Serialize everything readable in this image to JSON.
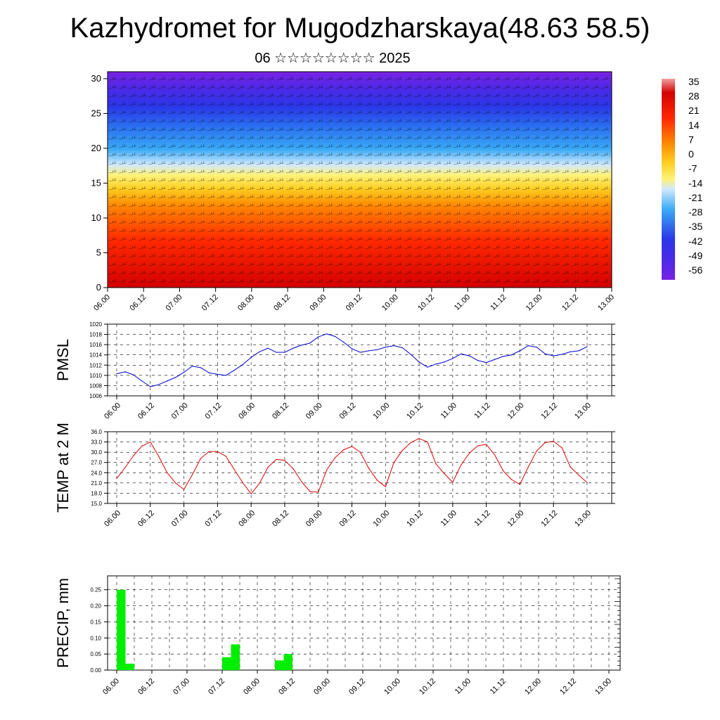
{
  "header": {
    "title": "Kazhydromet for Mugodzharskaya(48.63 58.5)",
    "subtitle": "06 ☆☆☆☆☆☆☆☆ 2025"
  },
  "time_labels": [
    "06.00",
    "06.12",
    "07.00",
    "07.12",
    "08.00",
    "08.12",
    "09.00",
    "09.12",
    "10.00",
    "10.12",
    "11.00",
    "11.12",
    "12.00",
    "12.12",
    "13.00"
  ],
  "colors": {
    "pmsl_line": "#0000cc",
    "temp_line": "#e00000",
    "precip_bar": "#00ee00",
    "grid": "#000000"
  },
  "chart_data": [
    {
      "type": "heatmap",
      "name": "vertical-cross-section",
      "x": [
        "06.00",
        "06.12",
        "07.00",
        "07.12",
        "08.00",
        "08.12",
        "09.00",
        "09.12",
        "10.00",
        "10.12",
        "11.00",
        "11.12",
        "12.00",
        "12.12",
        "13.00"
      ],
      "y_ticks": [
        0,
        5,
        10,
        15,
        20,
        25,
        30
      ],
      "ylim": [
        0,
        31
      ],
      "colorbar": {
        "labels": [
          "35",
          "28",
          "21",
          "14",
          "7",
          "0",
          "-7",
          "-14",
          "-21",
          "-28",
          "-35",
          "-42",
          "-49",
          "-56"
        ],
        "range": [
          -60,
          38
        ]
      },
      "notes_overlay": "wind barbs"
    },
    {
      "type": "line",
      "name": "pmsl",
      "ylabel": "PMSL",
      "ylim": [
        1006,
        1020
      ],
      "y_ticks": [
        "1006",
        "1008",
        "1010",
        "1012",
        "1014",
        "1016",
        "1018",
        "1020"
      ],
      "x_start": 0,
      "x_step": 0.25,
      "values": [
        1010.3,
        1010.7,
        1010.1,
        1008.9,
        1007.8,
        1008.2,
        1008.9,
        1009.6,
        1010.6,
        1011.8,
        1011.5,
        1010.5,
        1010.2,
        1010.0,
        1011.0,
        1012.1,
        1013.5,
        1014.6,
        1015.3,
        1014.5,
        1014.5,
        1015.3,
        1015.9,
        1016.3,
        1017.5,
        1018.1,
        1017.6,
        1016.5,
        1015.2,
        1014.5,
        1014.8,
        1015.0,
        1015.5,
        1015.8,
        1015.4,
        1014.1,
        1012.6,
        1011.6,
        1012.2,
        1012.6,
        1013.3,
        1014.2,
        1013.8,
        1012.9,
        1012.5,
        1013.1,
        1013.7,
        1014.0,
        1014.8,
        1015.8,
        1015.5,
        1014.2,
        1013.8,
        1014.1,
        1014.6,
        1014.8,
        1015.6
      ]
    },
    {
      "type": "line",
      "name": "temperature",
      "ylabel": "TEMP at 2 M",
      "ylim": [
        15,
        36
      ],
      "y_ticks": [
        "15.0",
        "18.0",
        "21.0",
        "24.0",
        "27.0",
        "30.0",
        "33.0",
        "36.0"
      ],
      "x_start": 0,
      "x_step": 0.25,
      "values": [
        22.3,
        25.5,
        29.0,
        31.8,
        33.0,
        28.8,
        24.0,
        21.0,
        19.1,
        23.4,
        28.2,
        30.2,
        30.2,
        28.8,
        24.9,
        21.1,
        17.8,
        20.9,
        25.6,
        27.9,
        27.6,
        25.2,
        21.4,
        18.5,
        18.3,
        24.8,
        28.4,
        30.7,
        31.7,
        30.0,
        25.3,
        21.8,
        19.9,
        27.0,
        30.5,
        32.8,
        34.0,
        33.0,
        26.6,
        23.7,
        21.2,
        26.3,
        29.8,
        31.9,
        32.3,
        29.2,
        24.6,
        22.0,
        20.6,
        25.7,
        30.4,
        32.8,
        33.2,
        31.3,
        25.7,
        23.3,
        21.1
      ]
    },
    {
      "type": "bar",
      "name": "precipitation",
      "ylabel": "PRECIP, mm",
      "ylim": [
        0,
        0.28
      ],
      "y_ticks": [
        "0.00",
        "0.05",
        "0.10",
        "0.15",
        "0.20",
        "0.25"
      ],
      "bars": [
        {
          "t": 0.125,
          "value": 0.25
        },
        {
          "t": 0.375,
          "value": 0.02
        },
        {
          "t": 3.125,
          "value": 0.04
        },
        {
          "t": 3.375,
          "value": 0.08
        },
        {
          "t": 4.625,
          "value": 0.03
        },
        {
          "t": 4.875,
          "value": 0.05
        }
      ]
    }
  ]
}
